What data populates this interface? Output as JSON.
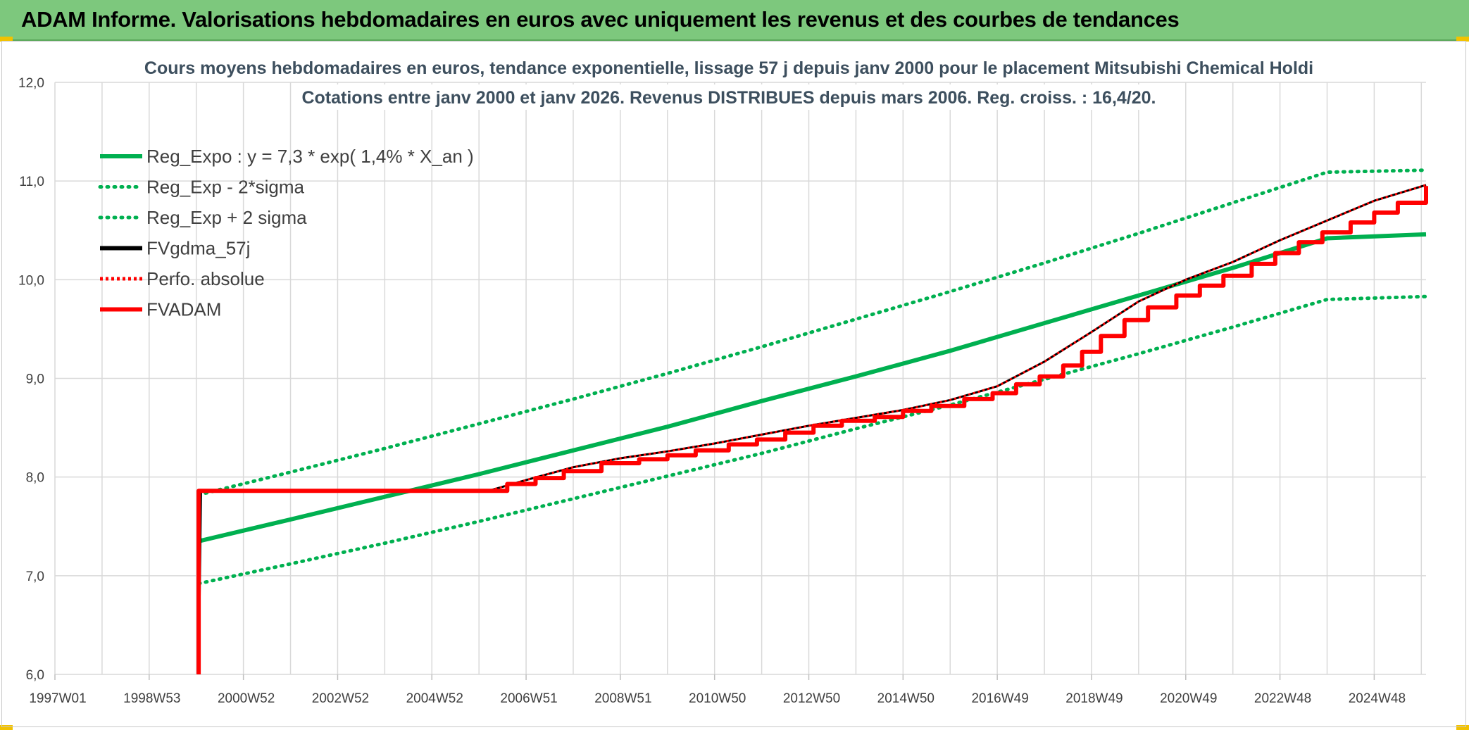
{
  "banner": {
    "title": "ADAM Informe. Valorisations hebdomadaires en euros avec uniquement les revenus et des courbes de tendances"
  },
  "colors": {
    "banner": "#7dc87d",
    "green": "#00b050",
    "red": "#ff0000",
    "black": "#000000",
    "grid": "#d9d9d9",
    "accent": "#f2c200"
  },
  "chart_data": {
    "type": "line",
    "title": [
      "Cours moyens hebdomadaires en euros, tendance exponentielle, lissage 57 j depuis janv 2000 pour le placement Mitsubishi Chemical Holdi",
      "Cotations entre janv 2000 et janv 2026. Revenus DISTRIBUES depuis mars 2006. Reg. croiss. : 16,4/20."
    ],
    "xlabel": "",
    "ylabel": "",
    "xlim": [
      1997.0,
      2026.1
    ],
    "ylim": [
      6.0,
      12.0
    ],
    "y_ticks": [
      "6,0",
      "7,0",
      "8,0",
      "9,0",
      "10,0",
      "11,0",
      "12,0"
    ],
    "x_ticks": [
      {
        "label": "1997W01",
        "x": 1997.0
      },
      {
        "label": "1998W53",
        "x": 1999.0
      },
      {
        "label": "2000W52",
        "x": 2001.0
      },
      {
        "label": "2002W52",
        "x": 2003.0
      },
      {
        "label": "2004W52",
        "x": 2005.0
      },
      {
        "label": "2006W51",
        "x": 2007.0
      },
      {
        "label": "2008W51",
        "x": 2009.0
      },
      {
        "label": "2010W50",
        "x": 2011.0
      },
      {
        "label": "2012W50",
        "x": 2013.0
      },
      {
        "label": "2014W50",
        "x": 2015.0
      },
      {
        "label": "2016W49",
        "x": 2017.0
      },
      {
        "label": "2018W49",
        "x": 2019.0
      },
      {
        "label": "2020W49",
        "x": 2021.0
      },
      {
        "label": "2022W48",
        "x": 2023.0
      },
      {
        "label": "2024W48",
        "x": 2025.0
      }
    ],
    "grid": true,
    "legend_position": "top-left",
    "series": [
      {
        "name": "Reg_Expo : y = 7,3 * exp( 1,4% *  X_an )",
        "color": "#00b050",
        "style": "solid",
        "x": [
          2000.05,
          2002,
          2004,
          2006,
          2008,
          2010,
          2012,
          2014,
          2016,
          2018,
          2020,
          2022,
          2024,
          2026.1
        ],
        "y": [
          7.35,
          7.57,
          7.8,
          8.03,
          8.27,
          8.51,
          8.77,
          9.02,
          9.28,
          9.56,
          9.84,
          10.12,
          10.42,
          10.46
        ]
      },
      {
        "name": "Reg_Exp - 2*sigma",
        "color": "#00b050",
        "style": "dotted",
        "x": [
          2000.05,
          2002,
          2004,
          2006,
          2008,
          2010,
          2012,
          2014,
          2016,
          2018,
          2020,
          2022,
          2024,
          2026.1
        ],
        "y": [
          6.92,
          7.12,
          7.33,
          7.55,
          7.78,
          8.01,
          8.24,
          8.49,
          8.73,
          8.99,
          9.25,
          9.52,
          9.8,
          9.83
        ]
      },
      {
        "name": "Reg_Exp + 2 sigma",
        "color": "#00b050",
        "style": "dotted",
        "x": [
          2000.05,
          2002,
          2004,
          2006,
          2008,
          2010,
          2012,
          2014,
          2016,
          2018,
          2020,
          2022,
          2024,
          2026.1
        ],
        "y": [
          7.82,
          8.05,
          8.29,
          8.54,
          8.79,
          9.05,
          9.32,
          9.6,
          9.88,
          10.17,
          10.47,
          10.78,
          11.09,
          11.11
        ]
      },
      {
        "name": "FVgdma_57j",
        "color": "#000000",
        "style": "solid",
        "x": [
          2000.05,
          2000.1,
          2006.2,
          2007,
          2008,
          2009,
          2010,
          2011,
          2012,
          2013,
          2014,
          2015,
          2016,
          2017,
          2018,
          2019,
          2020,
          2021,
          2022,
          2023,
          2024,
          2025,
          2026.1
        ],
        "y": [
          6.0,
          7.86,
          7.86,
          7.97,
          8.1,
          8.19,
          8.26,
          8.34,
          8.43,
          8.52,
          8.6,
          8.68,
          8.78,
          8.92,
          9.17,
          9.47,
          9.78,
          10.0,
          10.18,
          10.4,
          10.6,
          10.8,
          10.96
        ]
      },
      {
        "name": "Perfo. absolue",
        "color": "#ff0000",
        "style": "dotted",
        "x": [
          2000.05,
          2000.1,
          2006.2,
          2007,
          2008,
          2009,
          2010,
          2011,
          2012,
          2013,
          2014,
          2015,
          2016,
          2017,
          2018,
          2019,
          2020,
          2021,
          2022,
          2023,
          2024,
          2025,
          2026.1
        ],
        "y": [
          7.8,
          7.86,
          7.86,
          7.97,
          8.1,
          8.19,
          8.26,
          8.34,
          8.43,
          8.52,
          8.6,
          8.68,
          8.78,
          8.92,
          9.17,
          9.47,
          9.78,
          10.0,
          10.18,
          10.4,
          10.6,
          10.8,
          10.96
        ]
      },
      {
        "name": "FVADAM",
        "color": "#ff0000",
        "style": "solid",
        "stepped": true,
        "x": [
          2000.05,
          2000.05,
          2006.2,
          2006.6,
          2007.2,
          2007.8,
          2008.6,
          2009.4,
          2010.0,
          2010.6,
          2011.3,
          2011.9,
          2012.5,
          2013.1,
          2013.7,
          2014.4,
          2015.0,
          2015.6,
          2016.3,
          2016.9,
          2017.4,
          2017.9,
          2018.4,
          2018.8,
          2019.2,
          2019.7,
          2020.2,
          2020.8,
          2021.3,
          2021.8,
          2022.4,
          2022.9,
          2023.4,
          2023.9,
          2024.5,
          2025.0,
          2025.5,
          2026.1
        ],
        "y": [
          6.0,
          7.86,
          7.86,
          7.93,
          7.99,
          8.06,
          8.14,
          8.18,
          8.22,
          8.27,
          8.33,
          8.38,
          8.45,
          8.52,
          8.57,
          8.61,
          8.67,
          8.72,
          8.79,
          8.85,
          8.94,
          9.02,
          9.13,
          9.27,
          9.43,
          9.59,
          9.72,
          9.84,
          9.94,
          10.04,
          10.16,
          10.27,
          10.38,
          10.48,
          10.58,
          10.68,
          10.78,
          10.95
        ]
      }
    ]
  }
}
